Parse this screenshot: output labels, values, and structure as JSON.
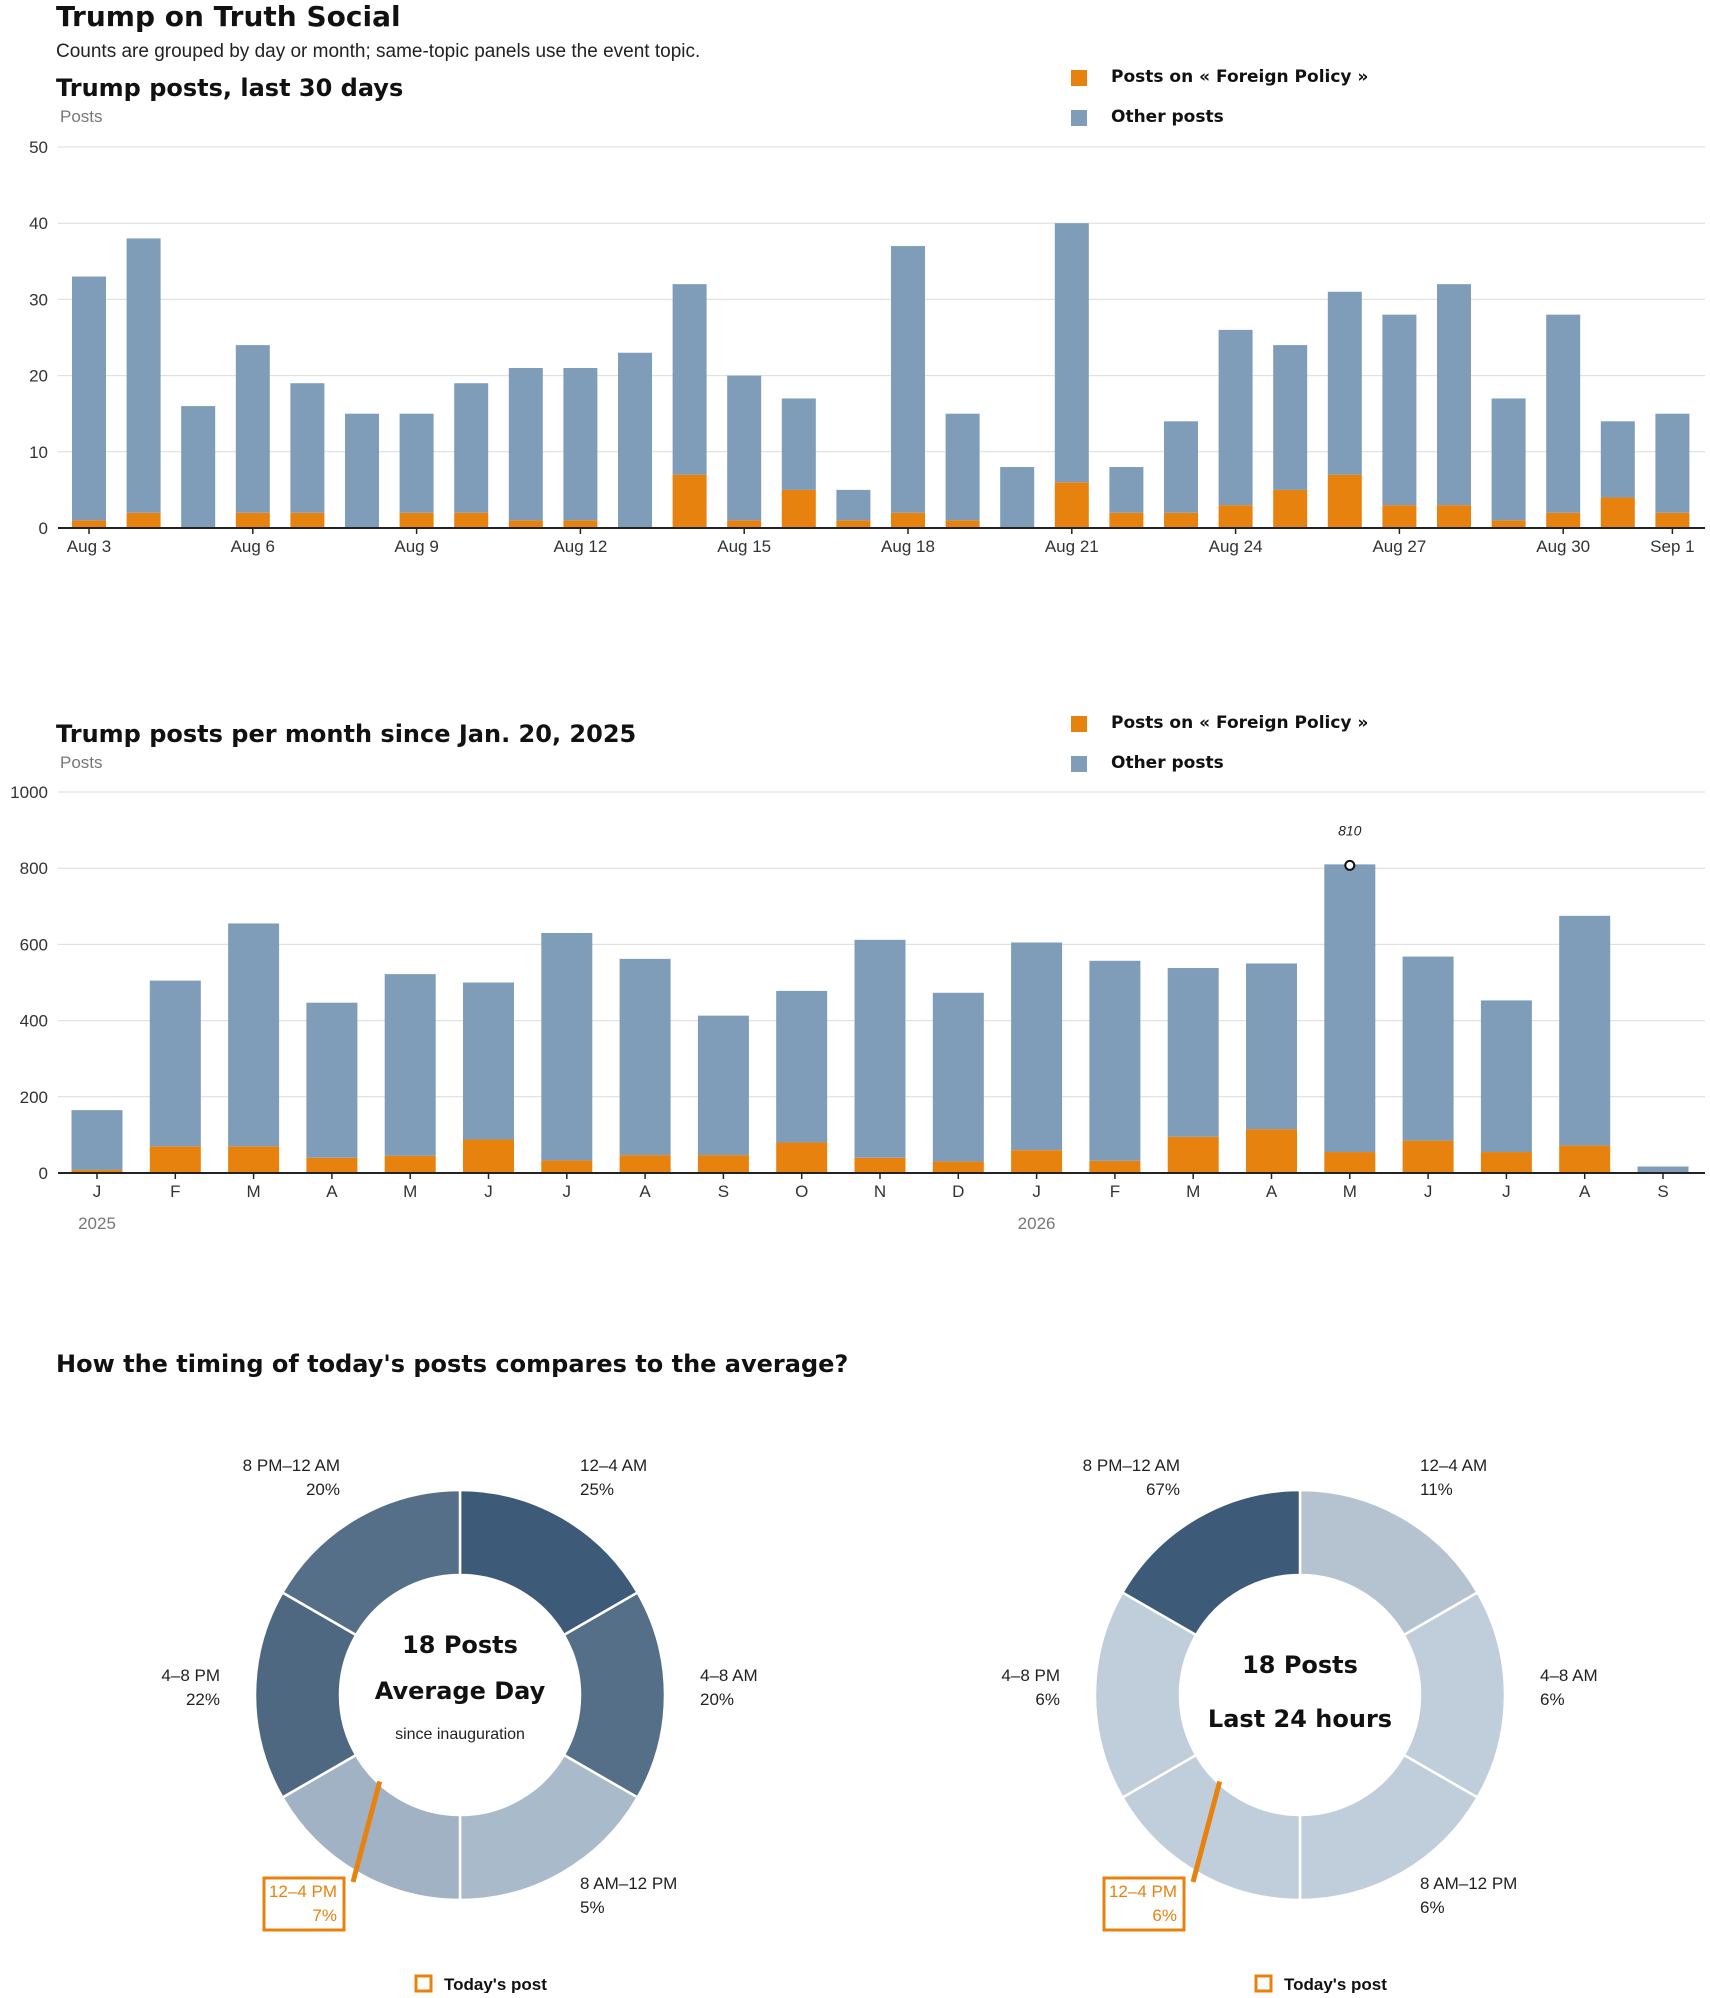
{
  "page": {
    "title": "Trump on Truth Social",
    "subtitle": "Counts are grouped by day or month; same-topic panels use the event topic."
  },
  "colors": {
    "topic": "#e8820e",
    "other": "#7f9db9"
  },
  "chart_data": [
    {
      "type": "bar",
      "stacked": true,
      "title": "Trump posts, last 30 days",
      "ylabel": "Posts",
      "ylim": [
        0,
        50
      ],
      "yticks": [
        0,
        10,
        20,
        30,
        40,
        50
      ],
      "grid": true,
      "legend_position": "top-right",
      "categories": [
        "Aug 3",
        "Aug 4",
        "Aug 5",
        "Aug 6",
        "Aug 7",
        "Aug 8",
        "Aug 9",
        "Aug 10",
        "Aug 11",
        "Aug 12",
        "Aug 13",
        "Aug 14",
        "Aug 15",
        "Aug 16",
        "Aug 17",
        "Aug 18",
        "Aug 19",
        "Aug 20",
        "Aug 21",
        "Aug 22",
        "Aug 23",
        "Aug 24",
        "Aug 25",
        "Aug 26",
        "Aug 27",
        "Aug 28",
        "Aug 29",
        "Aug 30",
        "Aug 31",
        "Sep 1"
      ],
      "tick_labels": [
        {
          "index": 0,
          "label": "Aug 3"
        },
        {
          "index": 3,
          "label": "Aug 6"
        },
        {
          "index": 6,
          "label": "Aug 9"
        },
        {
          "index": 9,
          "label": "Aug 12"
        },
        {
          "index": 12,
          "label": "Aug 15"
        },
        {
          "index": 15,
          "label": "Aug 18"
        },
        {
          "index": 18,
          "label": "Aug 21"
        },
        {
          "index": 21,
          "label": "Aug 24"
        },
        {
          "index": 24,
          "label": "Aug 27"
        },
        {
          "index": 27,
          "label": "Aug 30"
        },
        {
          "index": 29,
          "label": "Sep 1"
        }
      ],
      "series": [
        {
          "name": "Posts on « Foreign Policy »",
          "values": [
            1,
            2,
            0,
            2,
            2,
            0,
            2,
            2,
            1,
            1,
            0,
            7,
            1,
            5,
            1,
            2,
            1,
            0,
            6,
            2,
            2,
            3,
            5,
            7,
            3,
            3,
            1,
            2,
            4,
            2
          ]
        },
        {
          "name": "Other posts",
          "values": [
            32,
            36,
            16,
            22,
            17,
            15,
            13,
            17,
            20,
            20,
            23,
            25,
            19,
            12,
            4,
            35,
            14,
            8,
            34,
            6,
            12,
            23,
            19,
            24,
            25,
            29,
            16,
            26,
            10,
            13
          ]
        }
      ]
    },
    {
      "type": "bar",
      "stacked": true,
      "title": "Trump posts per month since Jan. 20, 2025",
      "ylabel": "Posts",
      "ylim": [
        0,
        1000
      ],
      "yticks": [
        0,
        200,
        400,
        600,
        800,
        1000
      ],
      "grid": true,
      "legend_position": "top-right",
      "categories": [
        "J",
        "F",
        "M",
        "A",
        "M",
        "J",
        "J",
        "A",
        "S",
        "O",
        "N",
        "D",
        "J",
        "F",
        "M",
        "A",
        "M",
        "J",
        "J",
        "A",
        "S"
      ],
      "years": [
        {
          "index": 0,
          "label": "2025"
        },
        {
          "index": 12,
          "label": "2026"
        }
      ],
      "annotation": {
        "index": 16,
        "label": "810"
      },
      "series": [
        {
          "name": "Posts on « Foreign Policy »",
          "values": [
            8,
            70,
            70,
            40,
            45,
            88,
            33,
            47,
            47,
            80,
            40,
            30,
            60,
            32,
            95,
            115,
            55,
            85,
            55,
            72,
            0
          ]
        },
        {
          "name": "Other posts",
          "values": [
            157,
            435,
            585,
            407,
            477,
            412,
            597,
            515,
            366,
            398,
            572,
            443,
            545,
            525,
            443,
            435,
            755,
            483,
            398,
            603,
            17
          ]
        }
      ]
    },
    {
      "type": "pie",
      "donut": true,
      "section_title": "How the timing of today's posts compares to the average?",
      "center": {
        "line1": "18 Posts",
        "line2": "Average Day",
        "line3": "since inauguration"
      },
      "highlight_index": 3,
      "legend": "Today's post",
      "slices": [
        {
          "label": "12–4 AM",
          "value": 25,
          "display": "25%",
          "color": "#3d5a78"
        },
        {
          "label": "4–8 AM",
          "value": 20,
          "display": "20%",
          "color": "#566f88"
        },
        {
          "label": "8 AM–12 PM",
          "value": 5,
          "display": "5%",
          "color": "#a9bacb"
        },
        {
          "label": "12–4 PM",
          "value": 7,
          "display": "7%",
          "color": "#a1b2c4"
        },
        {
          "label": "4–8 PM",
          "value": 22,
          "display": "22%",
          "color": "#4f6882"
        },
        {
          "label": "8 PM–12 AM",
          "value": 20,
          "display": "20%",
          "color": "#566f88"
        }
      ]
    },
    {
      "type": "pie",
      "donut": true,
      "center": {
        "line1": "18 Posts",
        "line2": "Last 24 hours",
        "line3": ""
      },
      "highlight_index": 3,
      "legend": "Today's post",
      "slices": [
        {
          "label": "12–4 AM",
          "value": 11,
          "display": "11%",
          "color": "#b5c3d1"
        },
        {
          "label": "4–8 AM",
          "value": 6,
          "display": "6%",
          "color": "#c0cddb"
        },
        {
          "label": "8 AM–12 PM",
          "value": 6,
          "display": "6%",
          "color": "#c0cddb"
        },
        {
          "label": "12–4 PM",
          "value": 6,
          "display": "6%",
          "color": "#c0cddb"
        },
        {
          "label": "4–8 PM",
          "value": 6,
          "display": "6%",
          "color": "#c0cddb"
        },
        {
          "label": "8 PM–12 AM",
          "value": 67,
          "display": "67%",
          "color": "#3d5a78"
        }
      ]
    }
  ]
}
